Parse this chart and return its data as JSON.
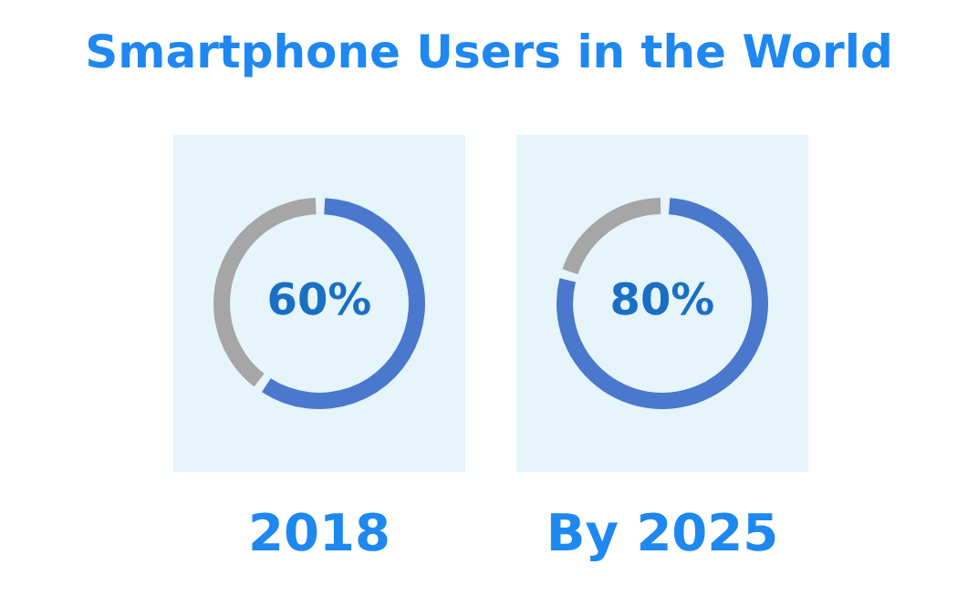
{
  "chart_data": [
    {
      "type": "donut",
      "title": "Smartphone Users in the World",
      "categories": [
        null,
        null
      ],
      "values": [
        60,
        40
      ],
      "colors": [
        "#4a78cc",
        "#a6a6a6"
      ],
      "value_labels": [
        "60%",
        null
      ],
      "xlabel": "2018"
    },
    {
      "type": "donut",
      "categories": [
        null,
        null
      ],
      "values": [
        80,
        20
      ],
      "colors": [
        "#4a78cc",
        "#a6a6a6"
      ],
      "value_labels": [
        "80%",
        null
      ],
      "xlabel": "By 2025"
    }
  ]
}
